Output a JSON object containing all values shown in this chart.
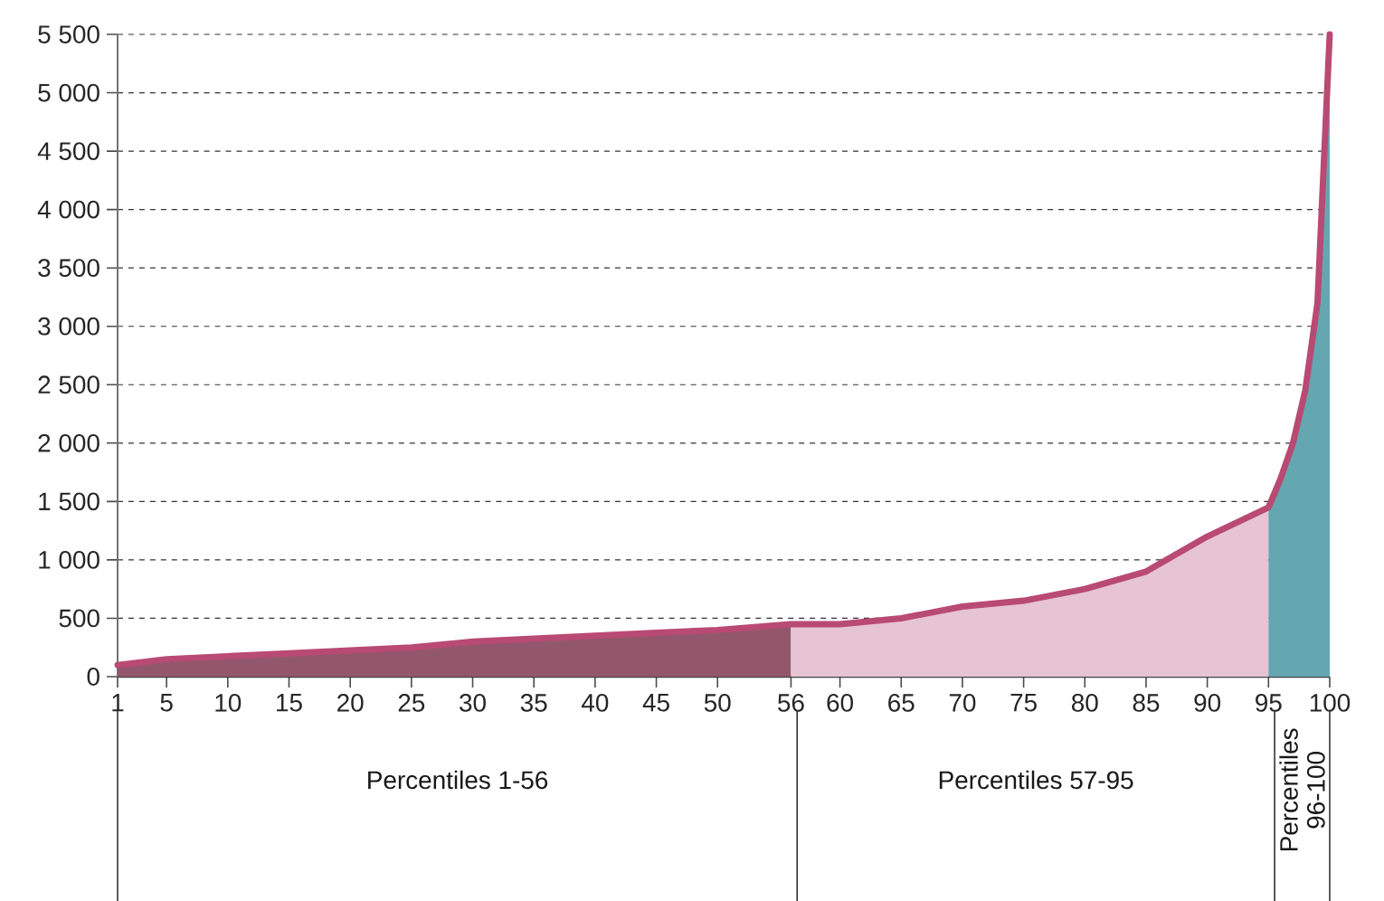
{
  "chart_data": {
    "type": "area",
    "xlim": [
      1,
      100
    ],
    "ylim": [
      0,
      5500
    ],
    "xticks": [
      1,
      5,
      10,
      15,
      20,
      25,
      30,
      35,
      40,
      45,
      50,
      56,
      60,
      65,
      70,
      75,
      80,
      85,
      90,
      95,
      100
    ],
    "yticks": [
      0,
      500,
      {
        "value": 1000,
        "label": "1 000"
      },
      {
        "value": 1500,
        "label": "1 500"
      },
      {
        "value": 2000,
        "label": "2 000"
      },
      {
        "value": 2500,
        "label": "2 500"
      },
      {
        "value": 3000,
        "label": "3 000"
      },
      {
        "value": 3500,
        "label": "3 500"
      },
      {
        "value": 4000,
        "label": "4 000"
      },
      {
        "value": 4500,
        "label": "4 500"
      },
      {
        "value": 5000,
        "label": "5 000"
      },
      {
        "value": 5500,
        "label": "5 500"
      }
    ],
    "grid": "y",
    "marker": "none",
    "series": [
      {
        "color": "#93576c",
        "x": [
          1,
          5,
          10,
          15,
          20,
          25,
          30,
          35,
          40,
          45,
          50,
          56
        ],
        "values": [
          100,
          150,
          175,
          200,
          225,
          250,
          300,
          325,
          350,
          375,
          400,
          450
        ]
      },
      {
        "color": "#e6c4d2",
        "x": [
          56,
          60,
          65,
          70,
          75,
          80,
          85,
          90,
          92,
          94,
          95
        ],
        "values": [
          450,
          450,
          500,
          600,
          650,
          750,
          900,
          1200,
          1300,
          1400,
          1450
        ]
      },
      {
        "color": "#64a7b1",
        "x": [
          95,
          96,
          97,
          98,
          99,
          100
        ],
        "values": [
          1450,
          1700,
          2000,
          2450,
          3200,
          5500
        ]
      },
      {
        "type": "line",
        "color": "#b94a73",
        "line_style": "solid",
        "x": [
          1,
          5,
          10,
          15,
          20,
          25,
          30,
          35,
          40,
          45,
          50,
          56,
          60,
          65,
          70,
          75,
          80,
          85,
          90,
          92,
          94,
          95,
          96,
          97,
          98,
          99,
          100
        ],
        "values": [
          100,
          150,
          175,
          200,
          225,
          250,
          300,
          325,
          350,
          375,
          400,
          450,
          450,
          500,
          600,
          650,
          750,
          900,
          1200,
          1300,
          1400,
          1450,
          1700,
          2000,
          2450,
          3200,
          5500
        ]
      }
    ],
    "annotations": [
      "Percentiles 1-56",
      "Percentiles 57-95",
      "Percentiles 96-100"
    ]
  }
}
